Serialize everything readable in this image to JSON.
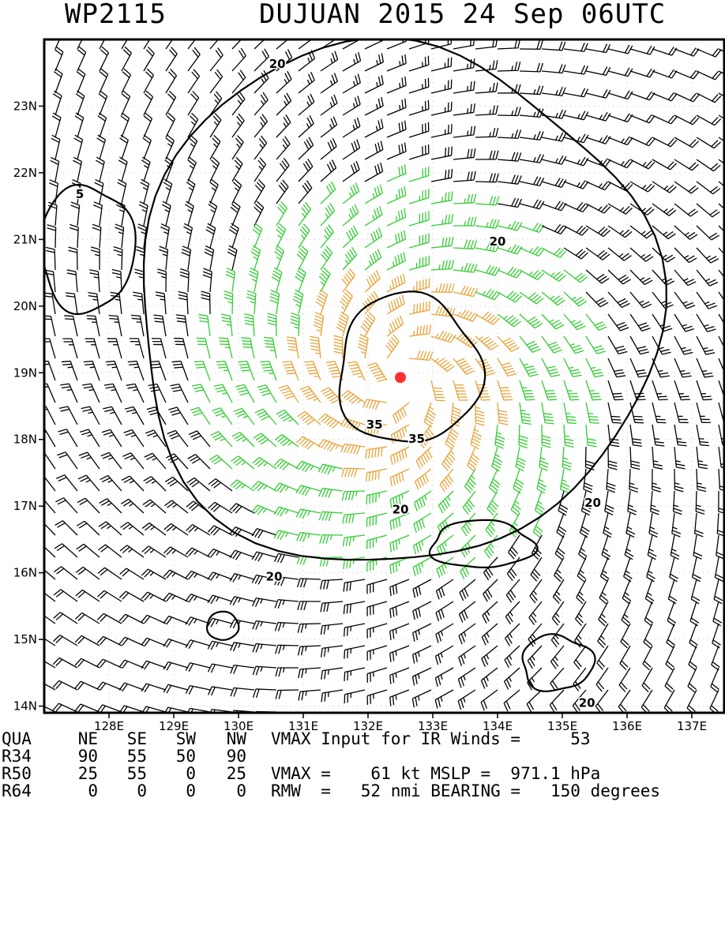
{
  "header": {
    "storm_id": "WP2115",
    "title": "DUJUAN 2015 24 Sep 06UTC"
  },
  "chart_data": {
    "type": "wind-barb-map",
    "storm_center": {
      "lon": 132.5,
      "lat": 18.93
    },
    "xlim": [
      127.0,
      137.5
    ],
    "ylim": [
      13.9,
      24.0
    ],
    "x_ticks": [
      {
        "v": 128,
        "label": "128E"
      },
      {
        "v": 129,
        "label": "129E"
      },
      {
        "v": 130,
        "label": "130E"
      },
      {
        "v": 131,
        "label": "131E"
      },
      {
        "v": 132,
        "label": "132E"
      },
      {
        "v": 133,
        "label": "133E"
      },
      {
        "v": 134,
        "label": "134E"
      },
      {
        "v": 135,
        "label": "135E"
      },
      {
        "v": 136,
        "label": "136E"
      },
      {
        "v": 137,
        "label": "137E"
      }
    ],
    "y_ticks": [
      {
        "v": 14,
        "label": "14N"
      },
      {
        "v": 15,
        "label": "15N"
      },
      {
        "v": 16,
        "label": "16N"
      },
      {
        "v": 17,
        "label": "17N"
      },
      {
        "v": 18,
        "label": "18N"
      },
      {
        "v": 19,
        "label": "19N"
      },
      {
        "v": 20,
        "label": "20N"
      },
      {
        "v": 21,
        "label": "21N"
      },
      {
        "v": 22,
        "label": "22N"
      },
      {
        "v": 23,
        "label": "23N"
      }
    ],
    "contour_labels": [
      {
        "text": "20",
        "lon": 130.6,
        "lat": 23.63
      },
      {
        "text": "20",
        "lon": 134.0,
        "lat": 20.97
      },
      {
        "text": "35",
        "lon": 132.1,
        "lat": 18.22
      },
      {
        "text": "35",
        "lon": 132.75,
        "lat": 18.01
      },
      {
        "text": "20",
        "lon": 132.5,
        "lat": 16.95
      },
      {
        "text": "20",
        "lon": 135.47,
        "lat": 17.05
      },
      {
        "text": "20",
        "lon": 130.55,
        "lat": 15.94
      },
      {
        "text": "20",
        "lon": 135.38,
        "lat": 14.05
      },
      {
        "text": "5",
        "lon": 127.55,
        "lat": 21.68
      }
    ],
    "barb_colors": {
      "below34": "#000000",
      "gale": "#33cc33",
      "storm": "#e8a33a",
      "center": "#ff3030"
    },
    "contour_levels": {
      "gale": 20,
      "storm": 35
    }
  },
  "info": {
    "rows": [
      [
        "QUA",
        "NE",
        "SE",
        "SW",
        "NW"
      ],
      [
        "R34",
        "90",
        "55",
        "50",
        "90"
      ],
      [
        "R50",
        "25",
        "55",
        "0",
        "25"
      ],
      [
        "R64",
        "0",
        "0",
        "0",
        "0"
      ]
    ],
    "vmax_input": "VMAX Input for IR Winds =     53",
    "vmax_mslp": "VMAX =    61 kt MSLP =  971.1 hPa",
    "rmw": "RMW  =   52 nmi BEARING =   150 degrees"
  }
}
